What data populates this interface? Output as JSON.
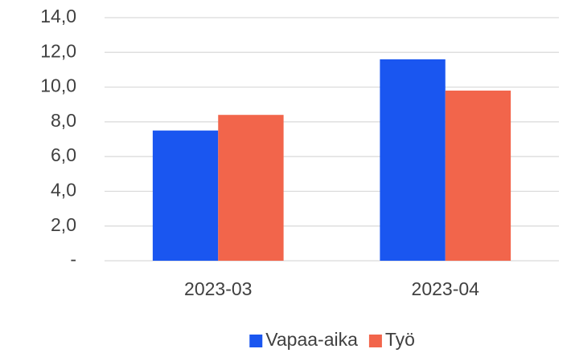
{
  "chart_data": {
    "type": "bar",
    "categories": [
      "2023-03",
      "2023-04"
    ],
    "series": [
      {
        "name": "Vapaa-aika",
        "color": "#1a56f0",
        "values": [
          7.5,
          11.6
        ]
      },
      {
        "name": "Työ",
        "color": "#f2654b",
        "values": [
          8.4,
          9.8
        ]
      }
    ],
    "ylim": [
      0,
      14
    ],
    "yticks": [
      {
        "value": 0,
        "label": "-"
      },
      {
        "value": 2,
        "label": "2,0"
      },
      {
        "value": 4,
        "label": "4,0"
      },
      {
        "value": 6,
        "label": "6,0"
      },
      {
        "value": 8,
        "label": "8,0"
      },
      {
        "value": 10,
        "label": "10,0"
      },
      {
        "value": 12,
        "label": "12,0"
      },
      {
        "value": 14,
        "label": "14,0"
      }
    ],
    "grid": true,
    "legend": "bottom"
  }
}
